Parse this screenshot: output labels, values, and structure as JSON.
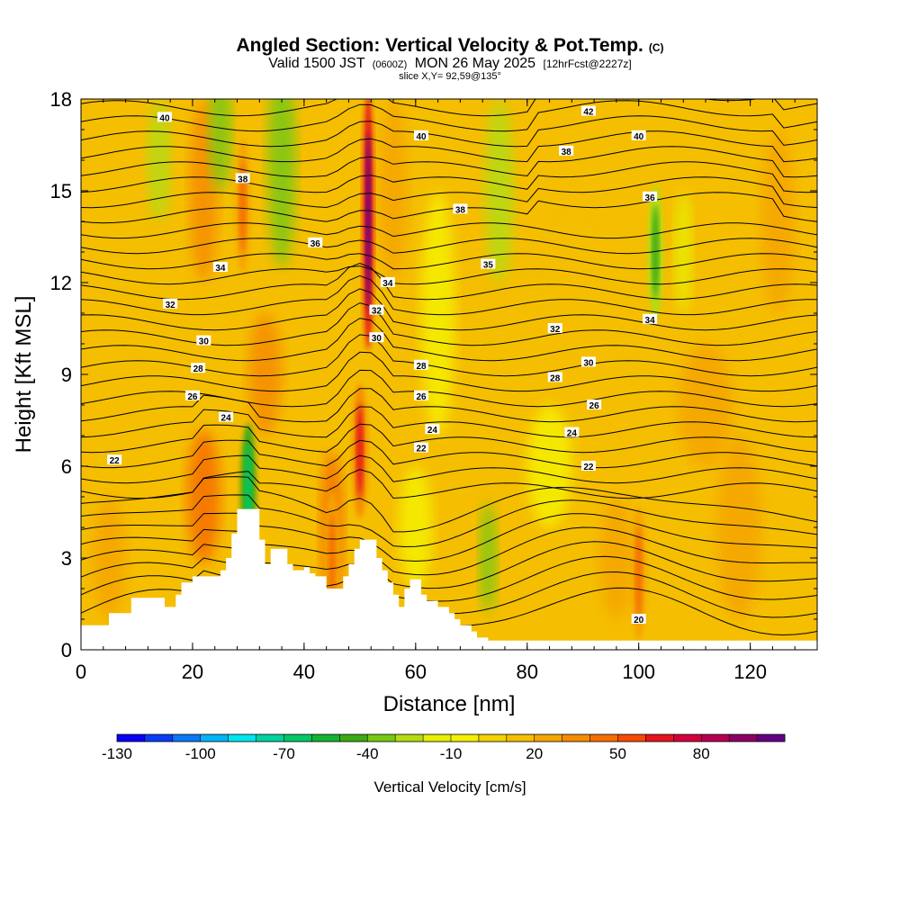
{
  "title": {
    "main": "Angled Section: Vertical Velocity & Pot.Temp.",
    "main_units": "(C)",
    "valid_a": "Valid 1500 JST",
    "valid_b": "(0600Z)",
    "valid_c": "MON 26 May 2025",
    "valid_d": "[12hrFcst@2227z]",
    "slice": "slice X,Y= 92,59@135°"
  },
  "chart_data": {
    "type": "heatmap",
    "xlabel": "Distance [nm]",
    "ylabel": "Height [Kft MSL]",
    "xlim": [
      0,
      132
    ],
    "ylim": [
      0,
      18
    ],
    "x_ticks": [
      "0",
      "20",
      "40",
      "60",
      "80",
      "100",
      "120"
    ],
    "x_tick_values": [
      0,
      20,
      40,
      60,
      80,
      100,
      120
    ],
    "y_ticks": [
      "0",
      "3",
      "6",
      "9",
      "12",
      "15",
      "18"
    ],
    "y_tick_values": [
      0,
      3,
      6,
      9,
      12,
      15,
      18
    ],
    "colorbar": {
      "label": "Vertical Velocity [cm/s]",
      "levels": [
        -130,
        -120,
        -110,
        -100,
        -90,
        -80,
        -70,
        -60,
        -50,
        -40,
        -30,
        -20,
        -10,
        0,
        10,
        20,
        30,
        40,
        50,
        60,
        70,
        80,
        90,
        100
      ],
      "tick_labels": [
        "-130",
        "-100",
        "-70",
        "-40",
        "-10",
        "20",
        "50",
        "80"
      ],
      "tick_values": [
        -130,
        -100,
        -70,
        -40,
        -10,
        20,
        50,
        80
      ],
      "colors": [
        "#0a00f5",
        "#0a3cf5",
        "#0a78f5",
        "#00b4f5",
        "#00e6f0",
        "#00d2a0",
        "#00c864",
        "#14b432",
        "#3caa14",
        "#78c814",
        "#b4dc14",
        "#e6f000",
        "#f5f000",
        "#f5d200",
        "#f5be00",
        "#f5a500",
        "#f58c00",
        "#f56e00",
        "#f54b00",
        "#e6141e",
        "#d2003c",
        "#b40050",
        "#8c0064",
        "#640082"
      ]
    },
    "contour_field": "Potential temperature (C)",
    "contour_labels": [
      {
        "x": 15,
        "y": 17.4,
        "text": "40"
      },
      {
        "x": 61,
        "y": 16.8,
        "text": "40"
      },
      {
        "x": 91,
        "y": 17.6,
        "text": "42"
      },
      {
        "x": 100,
        "y": 16.8,
        "text": "40"
      },
      {
        "x": 87,
        "y": 16.3,
        "text": "38"
      },
      {
        "x": 29,
        "y": 15.4,
        "text": "38"
      },
      {
        "x": 68,
        "y": 14.4,
        "text": "38"
      },
      {
        "x": 102,
        "y": 14.8,
        "text": "36"
      },
      {
        "x": 42,
        "y": 13.3,
        "text": "36"
      },
      {
        "x": 73,
        "y": 12.6,
        "text": "35"
      },
      {
        "x": 25,
        "y": 12.5,
        "text": "34"
      },
      {
        "x": 55,
        "y": 12.0,
        "text": "34"
      },
      {
        "x": 102,
        "y": 10.8,
        "text": "34"
      },
      {
        "x": 16,
        "y": 11.3,
        "text": "32"
      },
      {
        "x": 53,
        "y": 11.1,
        "text": "32"
      },
      {
        "x": 85,
        "y": 10.5,
        "text": "32"
      },
      {
        "x": 22,
        "y": 10.1,
        "text": "30"
      },
      {
        "x": 53,
        "y": 10.2,
        "text": "30"
      },
      {
        "x": 91,
        "y": 9.4,
        "text": "30"
      },
      {
        "x": 21,
        "y": 9.2,
        "text": "28"
      },
      {
        "x": 61,
        "y": 9.3,
        "text": "28"
      },
      {
        "x": 85,
        "y": 8.9,
        "text": "28"
      },
      {
        "x": 20,
        "y": 8.3,
        "text": "26"
      },
      {
        "x": 61,
        "y": 8.3,
        "text": "26"
      },
      {
        "x": 92,
        "y": 8.0,
        "text": "26"
      },
      {
        "x": 26,
        "y": 7.6,
        "text": "24"
      },
      {
        "x": 63,
        "y": 7.2,
        "text": "24"
      },
      {
        "x": 88,
        "y": 7.1,
        "text": "24"
      },
      {
        "x": 6,
        "y": 6.2,
        "text": "22"
      },
      {
        "x": 61,
        "y": 6.6,
        "text": "22"
      },
      {
        "x": 91,
        "y": 6.0,
        "text": "22"
      },
      {
        "x": 100,
        "y": 1.0,
        "text": "20"
      }
    ],
    "terrain": [
      [
        0,
        0.8
      ],
      [
        2,
        0.8
      ],
      [
        5,
        1.2
      ],
      [
        9,
        1.7
      ],
      [
        13,
        1.7
      ],
      [
        15,
        1.4
      ],
      [
        17,
        1.8
      ],
      [
        18,
        2.2
      ],
      [
        20,
        2.4
      ],
      [
        23,
        2.4
      ],
      [
        25,
        2.6
      ],
      [
        26,
        3.0
      ],
      [
        27,
        3.8
      ],
      [
        28,
        4.6
      ],
      [
        31,
        4.6
      ],
      [
        32,
        3.6
      ],
      [
        33,
        2.8
      ],
      [
        34,
        3.3
      ],
      [
        36,
        3.3
      ],
      [
        37,
        2.8
      ],
      [
        38,
        2.6
      ],
      [
        40,
        2.7
      ],
      [
        41,
        2.5
      ],
      [
        42,
        2.4
      ],
      [
        44,
        2.0
      ],
      [
        46,
        2.0
      ],
      [
        47,
        2.4
      ],
      [
        48,
        2.8
      ],
      [
        49,
        3.3
      ],
      [
        50,
        3.6
      ],
      [
        52,
        3.6
      ],
      [
        53,
        3.0
      ],
      [
        54,
        2.6
      ],
      [
        55,
        2.2
      ],
      [
        56,
        1.8
      ],
      [
        57,
        1.4
      ],
      [
        58,
        2.0
      ],
      [
        59,
        2.3
      ],
      [
        60,
        2.3
      ],
      [
        61,
        1.8
      ],
      [
        62,
        1.6
      ],
      [
        63,
        1.6
      ],
      [
        64,
        1.4
      ],
      [
        66,
        1.2
      ],
      [
        67,
        1.0
      ],
      [
        68,
        0.8
      ],
      [
        70,
        0.6
      ],
      [
        71,
        0.4
      ],
      [
        73,
        0.3
      ],
      [
        132,
        0.3
      ]
    ],
    "velocity_features": [
      {
        "x": 51.5,
        "y": 14.0,
        "value": 100
      },
      {
        "x": 50.0,
        "y": 6.5,
        "value": 60
      },
      {
        "x": 30.0,
        "y": 5.2,
        "value": -70
      },
      {
        "x": 103.0,
        "y": 13.0,
        "value": -50
      },
      {
        "x": 29.0,
        "y": 14.5,
        "value": 45
      },
      {
        "x": 45.0,
        "y": 3.0,
        "value": 45
      },
      {
        "x": 100.0,
        "y": 2.5,
        "value": 45
      }
    ]
  }
}
